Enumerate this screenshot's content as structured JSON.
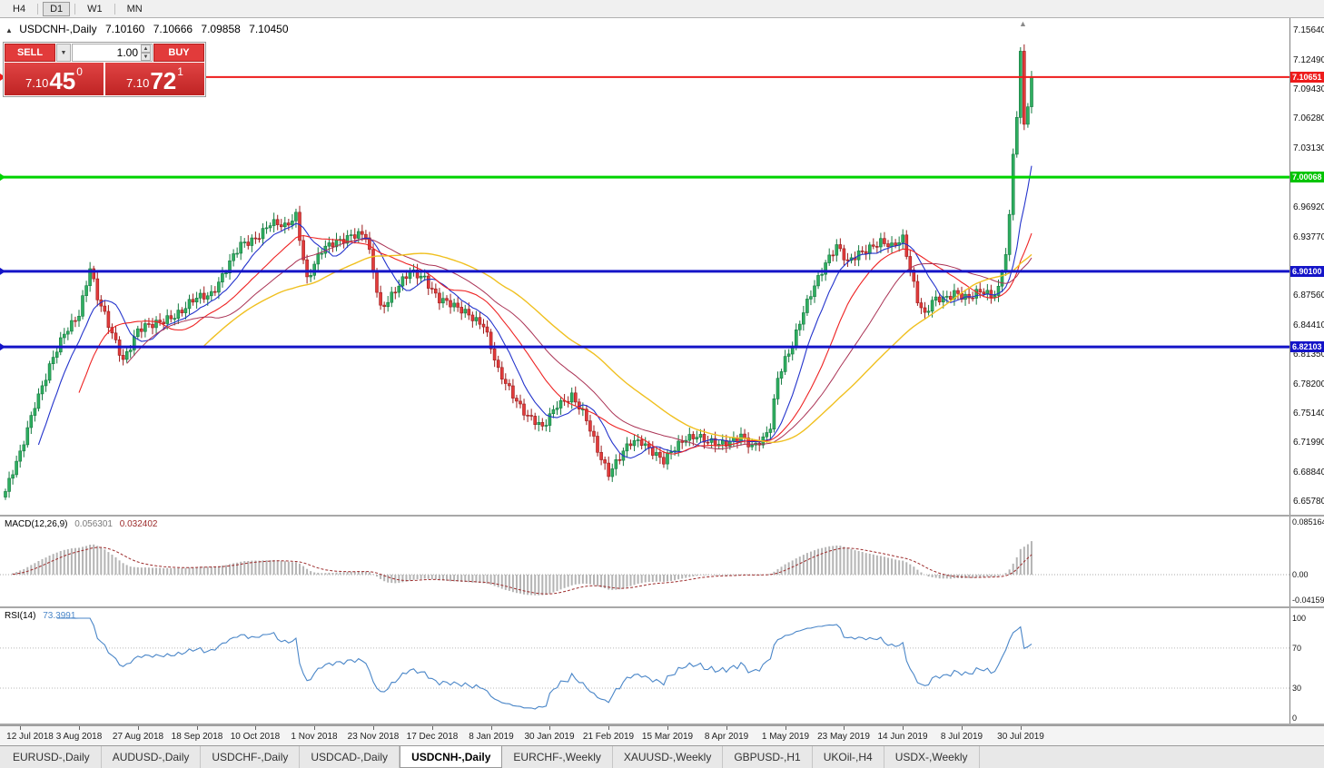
{
  "toolbar": {
    "timeframes": [
      {
        "label": "H4",
        "active": false
      },
      {
        "label": "D1",
        "active": true
      },
      {
        "label": "W1",
        "active": false
      },
      {
        "label": "MN",
        "active": false
      }
    ]
  },
  "chart_header": {
    "symbol": "USDCNH-,Daily",
    "open": "7.10160",
    "high": "7.10666",
    "low": "7.09858",
    "close": "7.10450"
  },
  "icons": {
    "collapse": "▲",
    "scroll_marker": "▲",
    "dropdown": "▼",
    "spinner_up": "▲",
    "spinner_down": "▼"
  },
  "trade_panel": {
    "sell_label": "SELL",
    "buy_label": "BUY",
    "volume": "1.00",
    "sell_price": {
      "prefix": "7.10",
      "big": "45",
      "sup": "0"
    },
    "buy_price": {
      "prefix": "7.10",
      "big": "72",
      "sup": "1"
    }
  },
  "price_axis": {
    "labels": [
      "7.15640",
      "7.12490",
      "7.09430",
      "7.06280",
      "7.03130",
      "6.96920",
      "6.93770",
      "6.87560",
      "6.84410",
      "6.81350",
      "6.78200",
      "6.75140",
      "6.71990",
      "6.68840",
      "6.65780"
    ],
    "badges": [
      {
        "text": "7.10651",
        "price": 7.10651,
        "color": "#ee1c1c"
      },
      {
        "text": "7.00068",
        "price": 7.00068,
        "color": "#00c400"
      },
      {
        "text": "6.90100",
        "price": 6.901,
        "color": "#1414c8"
      },
      {
        "text": "6.82103",
        "price": 6.82103,
        "color": "#1414c8"
      }
    ]
  },
  "hlines": [
    {
      "price": 7.10651,
      "color": "#ee1c1c",
      "width": 2
    },
    {
      "price": 7.00068,
      "color": "#00d300",
      "width": 3
    },
    {
      "price": 6.901,
      "color": "#1414c8",
      "width": 3
    },
    {
      "price": 6.82103,
      "color": "#1414c8",
      "width": 3
    }
  ],
  "chart_data": {
    "type": "candlestick",
    "symbol": "USDCNH",
    "timeframe": "Daily",
    "ylim": [
      6.6434,
      7.1689
    ],
    "n": 280,
    "bull_color": "#2fae60",
    "bull_edge": "#157a40",
    "bear_color": "#e23b3b",
    "bear_edge": "#9b1c1c",
    "moving_averages": [
      {
        "period": 10,
        "color": "#2333cc",
        "width": 1.1
      },
      {
        "period": 21,
        "color": "#ee2222",
        "width": 1.1
      },
      {
        "period": 34,
        "color": "#aa3355",
        "width": 1
      },
      {
        "period": 55,
        "color": "#f0c020",
        "width": 1.4
      }
    ],
    "close_anchors": [
      [
        0,
        6.668
      ],
      [
        4,
        6.706
      ],
      [
        8,
        6.762
      ],
      [
        12,
        6.8
      ],
      [
        16,
        6.833
      ],
      [
        20,
        6.858
      ],
      [
        23,
        6.906
      ],
      [
        25,
        6.872
      ],
      [
        28,
        6.843
      ],
      [
        32,
        6.809
      ],
      [
        36,
        6.838
      ],
      [
        40,
        6.843
      ],
      [
        44,
        6.853
      ],
      [
        48,
        6.858
      ],
      [
        52,
        6.872
      ],
      [
        56,
        6.879
      ],
      [
        60,
        6.902
      ],
      [
        64,
        6.928
      ],
      [
        68,
        6.938
      ],
      [
        72,
        6.951
      ],
      [
        76,
        6.947
      ],
      [
        79,
        6.962
      ],
      [
        82,
        6.893
      ],
      [
        86,
        6.921
      ],
      [
        90,
        6.934
      ],
      [
        94,
        6.94
      ],
      [
        98,
        6.937
      ],
      [
        102,
        6.863
      ],
      [
        106,
        6.882
      ],
      [
        110,
        6.898
      ],
      [
        114,
        6.895
      ],
      [
        118,
        6.872
      ],
      [
        122,
        6.862
      ],
      [
        126,
        6.857
      ],
      [
        130,
        6.845
      ],
      [
        134,
        6.793
      ],
      [
        138,
        6.772
      ],
      [
        142,
        6.748
      ],
      [
        146,
        6.733
      ],
      [
        150,
        6.762
      ],
      [
        154,
        6.769
      ],
      [
        158,
        6.742
      ],
      [
        161,
        6.713
      ],
      [
        164,
        6.689
      ],
      [
        167,
        6.703
      ],
      [
        170,
        6.718
      ],
      [
        173,
        6.722
      ],
      [
        176,
        6.712
      ],
      [
        179,
        6.699
      ],
      [
        182,
        6.712
      ],
      [
        185,
        6.726
      ],
      [
        188,
        6.729
      ],
      [
        191,
        6.719
      ],
      [
        194,
        6.716
      ],
      [
        197,
        6.722
      ],
      [
        200,
        6.729
      ],
      [
        203,
        6.713
      ],
      [
        206,
        6.721
      ],
      [
        208,
        6.738
      ],
      [
        210,
        6.791
      ],
      [
        212,
        6.809
      ],
      [
        214,
        6.822
      ],
      [
        217,
        6.856
      ],
      [
        220,
        6.887
      ],
      [
        223,
        6.912
      ],
      [
        226,
        6.927
      ],
      [
        229,
        6.908
      ],
      [
        232,
        6.921
      ],
      [
        235,
        6.928
      ],
      [
        238,
        6.931
      ],
      [
        241,
        6.925
      ],
      [
        244,
        6.937
      ],
      [
        246,
        6.906
      ],
      [
        248,
        6.872
      ],
      [
        250,
        6.853
      ],
      [
        252,
        6.867
      ],
      [
        254,
        6.871
      ],
      [
        256,
        6.874
      ],
      [
        258,
        6.881
      ],
      [
        260,
        6.876
      ],
      [
        262,
        6.871
      ],
      [
        264,
        6.876
      ],
      [
        266,
        6.879
      ],
      [
        268,
        6.876
      ],
      [
        270,
        6.884
      ],
      [
        271,
        6.904
      ],
      [
        272,
        6.921
      ],
      [
        273,
        6.957
      ],
      [
        274,
        7.026
      ],
      [
        275,
        7.062
      ],
      [
        276,
        7.128
      ],
      [
        277,
        7.058
      ],
      [
        278,
        7.074
      ],
      [
        279,
        7.104
      ]
    ]
  },
  "macd_panel": {
    "title": "MACD(12,26,9)",
    "main_value": "0.056301",
    "signal_value": "0.032402",
    "axis_labels": [
      "0.085164",
      "0.00",
      "-0.04159"
    ],
    "axis_values": [
      0.085164,
      0,
      -0.04159
    ],
    "ylim": [
      -0.0514,
      0.094
    ],
    "histogram_color": "#b4b4b4",
    "signal_color": "#9c2b2b"
  },
  "rsi_panel": {
    "title": "RSI(14)",
    "value": "73.3991",
    "axis_labels": [
      "100",
      "70",
      "30",
      "0"
    ],
    "axis_values": [
      100,
      70,
      30,
      0
    ],
    "levels": [
      70,
      30
    ],
    "ylim": [
      -5.4,
      109.9
    ],
    "line_color": "#4a86c8"
  },
  "time_axis": {
    "labels": [
      "12 Jul 2018",
      "3 Aug 2018",
      "27 Aug 2018",
      "18 Sep 2018",
      "10 Oct 2018",
      "1 Nov 2018",
      "23 Nov 2018",
      "17 Dec 2018",
      "8 Jan 2019",
      "30 Jan 2019",
      "21 Feb 2019",
      "15 Mar 2019",
      "8 Apr 2019",
      "1 May 2019",
      "23 May 2019",
      "14 Jun 2019",
      "8 Jul 2019",
      "30 Jul 2019"
    ]
  },
  "tabs": [
    {
      "label": "EURUSD-,Daily",
      "active": false
    },
    {
      "label": "AUDUSD-,Daily",
      "active": false
    },
    {
      "label": "USDCHF-,Daily",
      "active": false
    },
    {
      "label": "USDCAD-,Daily",
      "active": false
    },
    {
      "label": "USDCNH-,Daily",
      "active": true
    },
    {
      "label": "EURCHF-,Weekly",
      "active": false
    },
    {
      "label": "XAUUSD-,Weekly",
      "active": false
    },
    {
      "label": "GBPUSD-,H1",
      "active": false
    },
    {
      "label": "UKOil-,H4",
      "active": false
    },
    {
      "label": "USDX-,Weekly",
      "active": false
    }
  ]
}
